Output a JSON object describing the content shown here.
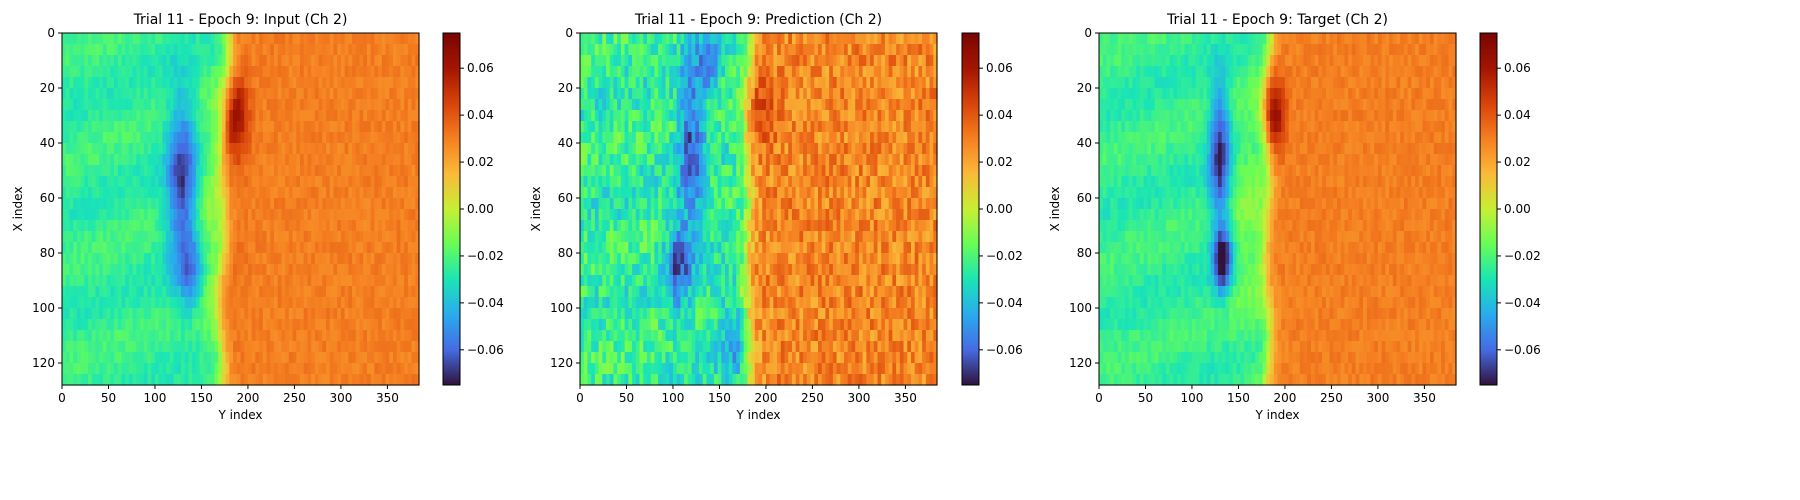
{
  "chart_data": [
    {
      "type": "heatmap",
      "title": "Trial 11 - Epoch 9: Input (Ch 2)",
      "xlabel": "Y index",
      "ylabel": "X index",
      "xlim": [
        0,
        384
      ],
      "ylim": [
        128,
        0
      ],
      "xticks": [
        0,
        50,
        100,
        150,
        200,
        250,
        300,
        350
      ],
      "yticks": [
        0,
        20,
        40,
        60,
        80,
        100,
        120
      ],
      "colorbar": {
        "range": [
          -0.075,
          0.075
        ],
        "ticks": [
          -0.06,
          -0.04,
          -0.02,
          0.0,
          0.02,
          0.04,
          0.06
        ],
        "tick_labels": [
          "−0.06",
          "−0.04",
          "−0.02",
          "0.00",
          "0.02",
          "0.04",
          "0.06"
        ],
        "colormap": "turbo"
      },
      "field": {
        "background": -0.025,
        "front_center": 175,
        "front_tilt": 0.06,
        "right_value": 0.03,
        "features": [
          {
            "x": 130,
            "y": 55,
            "sx": 12,
            "sy": 22,
            "v": -0.045
          },
          {
            "x": 140,
            "y": 88,
            "sx": 10,
            "sy": 10,
            "v": -0.025
          },
          {
            "x": 186,
            "y": 30,
            "sx": 10,
            "sy": 10,
            "v": 0.035
          },
          {
            "x": 160,
            "y": 70,
            "sx": 18,
            "sy": 30,
            "v": 0.015
          }
        ],
        "noise": 0.004
      }
    },
    {
      "type": "heatmap",
      "title": "Trial 11 - Epoch 9: Prediction (Ch 2)",
      "xlabel": "Y index",
      "ylabel": "X index",
      "xlim": [
        0,
        384
      ],
      "ylim": [
        128,
        0
      ],
      "xticks": [
        0,
        50,
        100,
        150,
        200,
        250,
        300,
        350
      ],
      "yticks": [
        0,
        20,
        40,
        60,
        80,
        100,
        120
      ],
      "colorbar": {
        "range": [
          -0.075,
          0.075
        ],
        "ticks": [
          -0.06,
          -0.04,
          -0.02,
          0.0,
          0.02,
          0.04,
          0.06
        ],
        "tick_labels": [
          "−0.06",
          "−0.04",
          "−0.02",
          "0.00",
          "0.02",
          "0.04",
          "0.06"
        ],
        "colormap": "turbo"
      },
      "field": {
        "background": -0.025,
        "front_center": 180,
        "front_tilt": 0.02,
        "right_value": 0.028,
        "features": [
          {
            "x": 120,
            "y": 40,
            "sx": 10,
            "sy": 25,
            "v": -0.035
          },
          {
            "x": 105,
            "y": 85,
            "sx": 9,
            "sy": 12,
            "v": -0.035
          },
          {
            "x": 140,
            "y": 10,
            "sx": 8,
            "sy": 8,
            "v": -0.03
          },
          {
            "x": 195,
            "y": 28,
            "sx": 10,
            "sy": 10,
            "v": 0.015
          },
          {
            "x": 165,
            "y": 110,
            "sx": 12,
            "sy": 14,
            "v": -0.02
          }
        ],
        "noise": 0.012
      }
    },
    {
      "type": "heatmap",
      "title": "Trial 11 - Epoch 9: Target (Ch 2)",
      "xlabel": "Y index",
      "ylabel": "X index",
      "xlim": [
        0,
        384
      ],
      "ylim": [
        128,
        0
      ],
      "xticks": [
        0,
        50,
        100,
        150,
        200,
        250,
        300,
        350
      ],
      "yticks": [
        0,
        20,
        40,
        60,
        80,
        100,
        120
      ],
      "colorbar": {
        "range": [
          -0.075,
          0.075
        ],
        "ticks": [
          -0.06,
          -0.04,
          -0.02,
          0.0,
          0.02,
          0.04,
          0.06
        ],
        "tick_labels": [
          "−0.06",
          "−0.04",
          "−0.02",
          "0.00",
          "0.02",
          "0.04",
          "0.06"
        ],
        "colormap": "turbo"
      },
      "field": {
        "background": -0.025,
        "front_center": 182,
        "front_tilt": 0.01,
        "right_value": 0.03,
        "features": [
          {
            "x": 130,
            "y": 45,
            "sx": 8,
            "sy": 18,
            "v": -0.045
          },
          {
            "x": 133,
            "y": 83,
            "sx": 7,
            "sy": 8,
            "v": -0.055
          },
          {
            "x": 188,
            "y": 30,
            "sx": 8,
            "sy": 10,
            "v": 0.04
          },
          {
            "x": 160,
            "y": 70,
            "sx": 15,
            "sy": 30,
            "v": 0.012
          }
        ],
        "noise": 0.004
      }
    }
  ]
}
